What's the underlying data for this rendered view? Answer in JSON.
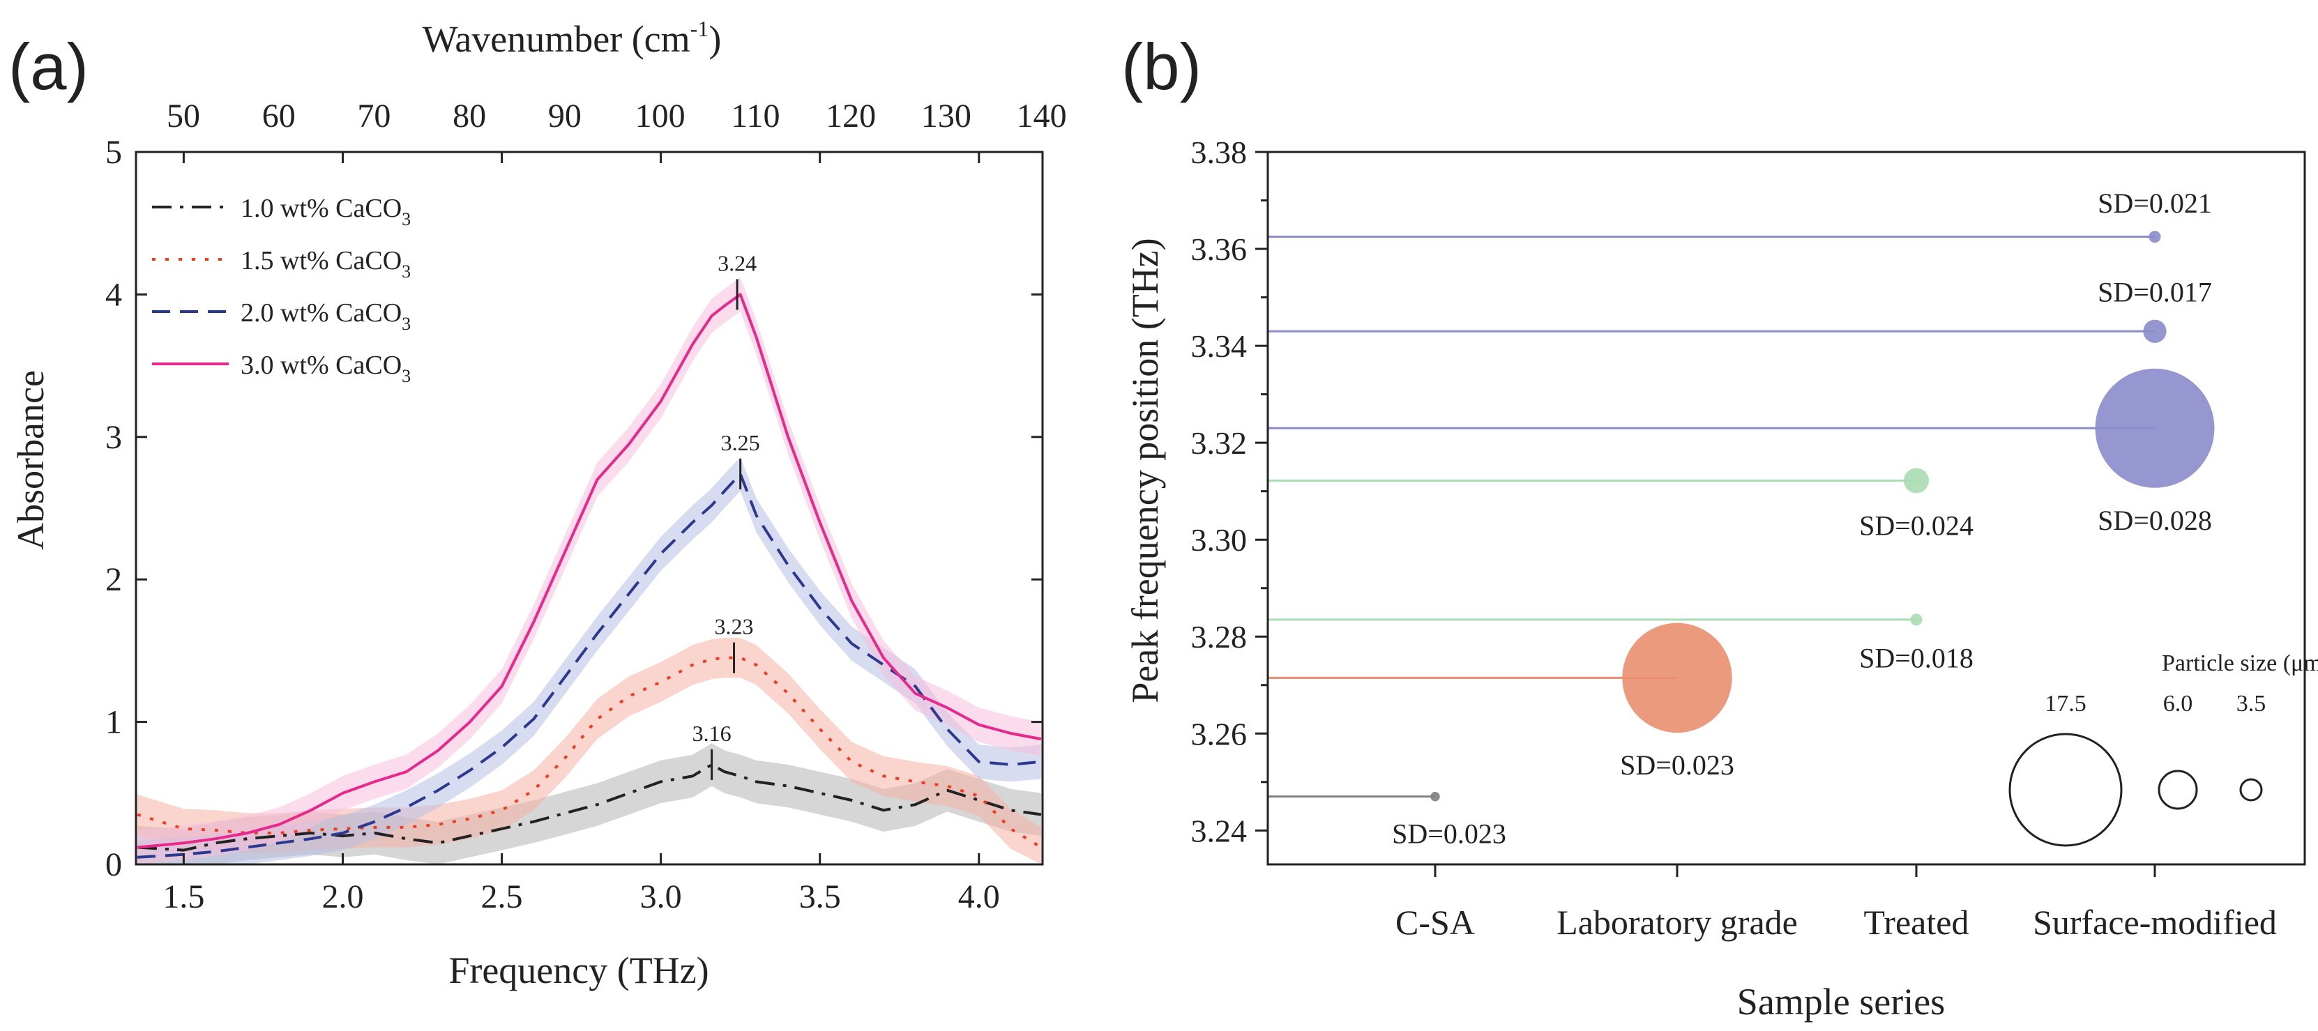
{
  "chart_data": [
    {
      "panel_label": "(a)",
      "type": "line",
      "xlabel": "Frequency (THz)",
      "ylabel": "Absorbance",
      "top_xlabel": "Wavenumber (cm",
      "top_xlabel_sup": "-1",
      "top_xlabel_end": ")",
      "xlim": [
        1.35,
        4.2
      ],
      "ylim": [
        0,
        5
      ],
      "x_ticks": [
        1.5,
        2.0,
        2.5,
        3.0,
        3.5,
        4.0
      ],
      "x_tick_labels": [
        "1.5",
        "2.0",
        "2.5",
        "3.0",
        "3.5",
        "4.0"
      ],
      "y_ticks": [
        0,
        1,
        2,
        3,
        4,
        5
      ],
      "y_tick_labels": [
        "0",
        "1",
        "2",
        "3",
        "4",
        "5"
      ],
      "top_ticks": [
        50,
        60,
        70,
        80,
        90,
        100,
        110,
        120,
        130,
        140
      ],
      "top_tick_labels": [
        "50",
        "60",
        "70",
        "80",
        "90",
        "100",
        "110",
        "120",
        "130",
        "140"
      ],
      "legend_placement": "top-left",
      "x": [
        1.35,
        1.5,
        1.6,
        1.7,
        1.8,
        1.9,
        2.0,
        2.1,
        2.2,
        2.3,
        2.4,
        2.5,
        2.6,
        2.7,
        2.8,
        2.9,
        3.0,
        3.1,
        3.16,
        3.2,
        3.25,
        3.3,
        3.4,
        3.5,
        3.6,
        3.7,
        3.8,
        3.9,
        4.0,
        4.1,
        4.2
      ],
      "series": [
        {
          "name": "1.0 wt% CaCO",
          "sub": "3",
          "color": "#222222",
          "band_color": "#b5b5b5",
          "dash": "28,12,5,12",
          "values": [
            0.12,
            0.1,
            0.15,
            0.18,
            0.2,
            0.22,
            0.2,
            0.22,
            0.18,
            0.15,
            0.2,
            0.25,
            0.3,
            0.36,
            0.42,
            0.5,
            0.58,
            0.62,
            0.7,
            0.65,
            0.62,
            0.58,
            0.55,
            0.5,
            0.45,
            0.38,
            0.42,
            0.52,
            0.45,
            0.38,
            0.35
          ],
          "band": 0.15
        },
        {
          "name": "1.5 wt% CaCO",
          "sub": "3",
          "color": "#f03c1e",
          "band_color": "#f5b3a6",
          "dash": "5,14",
          "values": [
            0.35,
            0.25,
            0.24,
            0.22,
            0.22,
            0.24,
            0.25,
            0.26,
            0.26,
            0.28,
            0.32,
            0.38,
            0.52,
            0.75,
            1.02,
            1.18,
            1.28,
            1.4,
            1.44,
            1.45,
            1.45,
            1.4,
            1.2,
            0.95,
            0.72,
            0.62,
            0.58,
            0.55,
            0.48,
            0.25,
            0.12
          ],
          "band": 0.14
        },
        {
          "name": "2.0 wt% CaCO",
          "sub": "3",
          "color": "#2b3a8f",
          "band_color": "#b8c0e4",
          "dash": "26,14",
          "values": [
            0.05,
            0.07,
            0.09,
            0.12,
            0.15,
            0.18,
            0.22,
            0.3,
            0.4,
            0.52,
            0.66,
            0.82,
            1.02,
            1.32,
            1.62,
            1.9,
            2.18,
            2.4,
            2.52,
            2.62,
            2.74,
            2.45,
            2.1,
            1.8,
            1.55,
            1.4,
            1.25,
            0.95,
            0.72,
            0.7,
            0.72
          ],
          "band": 0.12
        },
        {
          "name": "3.0 wt% CaCO",
          "sub": "3",
          "color": "#e8298c",
          "band_color": "#f5bfdc",
          "dash": "",
          "values": [
            0.12,
            0.15,
            0.18,
            0.22,
            0.28,
            0.38,
            0.5,
            0.58,
            0.65,
            0.8,
            1.0,
            1.25,
            1.7,
            2.2,
            2.7,
            2.95,
            3.25,
            3.65,
            3.85,
            3.92,
            4.0,
            3.7,
            3.0,
            2.4,
            1.85,
            1.45,
            1.2,
            1.1,
            0.98,
            0.92,
            0.88
          ],
          "band": 0.12
        }
      ],
      "peak_labels": [
        {
          "x": 3.16,
          "y": 0.7,
          "text": "3.16"
        },
        {
          "x": 3.23,
          "y": 1.45,
          "text": "3.23"
        },
        {
          "x": 3.25,
          "y": 2.74,
          "text": "3.25"
        },
        {
          "x": 3.24,
          "y": 4.0,
          "text": "3.24"
        }
      ]
    },
    {
      "panel_label": "(b)",
      "type": "scatter",
      "xlabel": "Sample series",
      "ylabel": "Peak frequency position (THz)",
      "categories": [
        "C-SA",
        "Laboratory grade",
        "Treated",
        "Surface-modified"
      ],
      "ylim": [
        3.233,
        3.38
      ],
      "y_ticks": [
        3.24,
        3.26,
        3.28,
        3.3,
        3.32,
        3.34,
        3.36,
        3.38
      ],
      "y_tick_labels": [
        "3.24",
        "3.26",
        "3.28",
        "3.30",
        "3.32",
        "3.34",
        "3.36",
        "3.38"
      ],
      "points": [
        {
          "category": "C-SA",
          "y": 3.247,
          "size_um": 1.5,
          "sd_label": "SD=0.023",
          "color": "#808080",
          "label_pos": "below"
        },
        {
          "category": "Laboratory grade",
          "y": 3.2715,
          "size_um": 17.5,
          "sd_label": "SD=0.023",
          "color": "#ea8f70",
          "label_pos": "below"
        },
        {
          "category": "Treated",
          "y": 3.2835,
          "size_um": 1.9,
          "sd_label": "SD=0.018",
          "color": "#a8dcb2",
          "label_pos": "below"
        },
        {
          "category": "Treated",
          "y": 3.3122,
          "size_um": 4.0,
          "sd_label": "SD=0.024",
          "color": "#a8dcb2",
          "label_pos": "below"
        },
        {
          "category": "Surface-modified",
          "y": 3.323,
          "size_um": 19.0,
          "sd_label": "SD=0.028",
          "color": "#8b8ccb",
          "label_pos": "below"
        },
        {
          "category": "Surface-modified",
          "y": 3.343,
          "size_um": 3.7,
          "sd_label": "SD=0.017",
          "color": "#8b8ccb",
          "label_pos": "above"
        },
        {
          "category": "Surface-modified",
          "y": 3.3625,
          "size_um": 1.9,
          "sd_label": "SD=0.021",
          "color": "#8b8ccb",
          "label_pos": "above"
        }
      ],
      "size_legend": {
        "title": "Particle size (μm)",
        "items": [
          {
            "size_um": 17.5,
            "label": "17.5"
          },
          {
            "size_um": 6.0,
            "label": "6.0"
          },
          {
            "size_um": 3.5,
            "label": "3.5"
          }
        ]
      }
    }
  ]
}
